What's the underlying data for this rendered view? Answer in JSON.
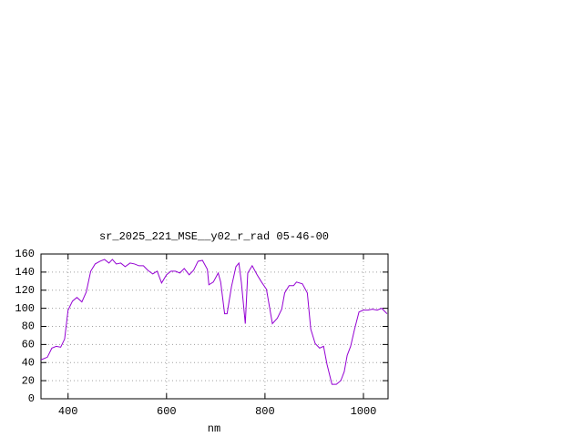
{
  "chart_data": {
    "type": "line",
    "title": "sr_2025_221_MSE__y02_r_rad 05-46-00",
    "x_label": "nm",
    "x": [
      345,
      358,
      367,
      376,
      385,
      393,
      400,
      409,
      418,
      428,
      437,
      446,
      455,
      465,
      474,
      483,
      490,
      498,
      507,
      516,
      526,
      535,
      544,
      553,
      562,
      572,
      581,
      590,
      600,
      609,
      618,
      627,
      636,
      646,
      655,
      664,
      673,
      683,
      686,
      695,
      705,
      710,
      718,
      723,
      732,
      741,
      747,
      752,
      760,
      765,
      774,
      784,
      793,
      803,
      815,
      825,
      834,
      840,
      849,
      858,
      864,
      876,
      886,
      893,
      902,
      911,
      919,
      926,
      936,
      945,
      954,
      961,
      967,
      974,
      982,
      991,
      1000,
      1009,
      1018,
      1028,
      1037,
      1048
    ],
    "series": [
      {
        "color": "#9400d3",
        "values": [
          43,
          46,
          56,
          58,
          57,
          66,
          98,
          108,
          112,
          107,
          118,
          141,
          149,
          152,
          154,
          150,
          154,
          149,
          150,
          146,
          150,
          149,
          147,
          147,
          142,
          138,
          141,
          128,
          137,
          141,
          141,
          139,
          144,
          137,
          142,
          152,
          153,
          143,
          126,
          129,
          139,
          129,
          94,
          94,
          124,
          146,
          150,
          129,
          83,
          139,
          147,
          137,
          129,
          121,
          83,
          89,
          99,
          117,
          125,
          125,
          129,
          127,
          117,
          77,
          61,
          56,
          58,
          38,
          16,
          16,
          20,
          30,
          48,
          58,
          77,
          96,
          98,
          98,
          99,
          98,
          100,
          94
        ]
      }
    ],
    "xlim": [
      345,
      1050
    ],
    "ylim": [
      0,
      160
    ],
    "xticks": [
      400,
      600,
      800,
      1000
    ],
    "yticks": [
      0,
      20,
      40,
      60,
      80,
      100,
      120,
      140,
      160
    ],
    "grid": true
  }
}
